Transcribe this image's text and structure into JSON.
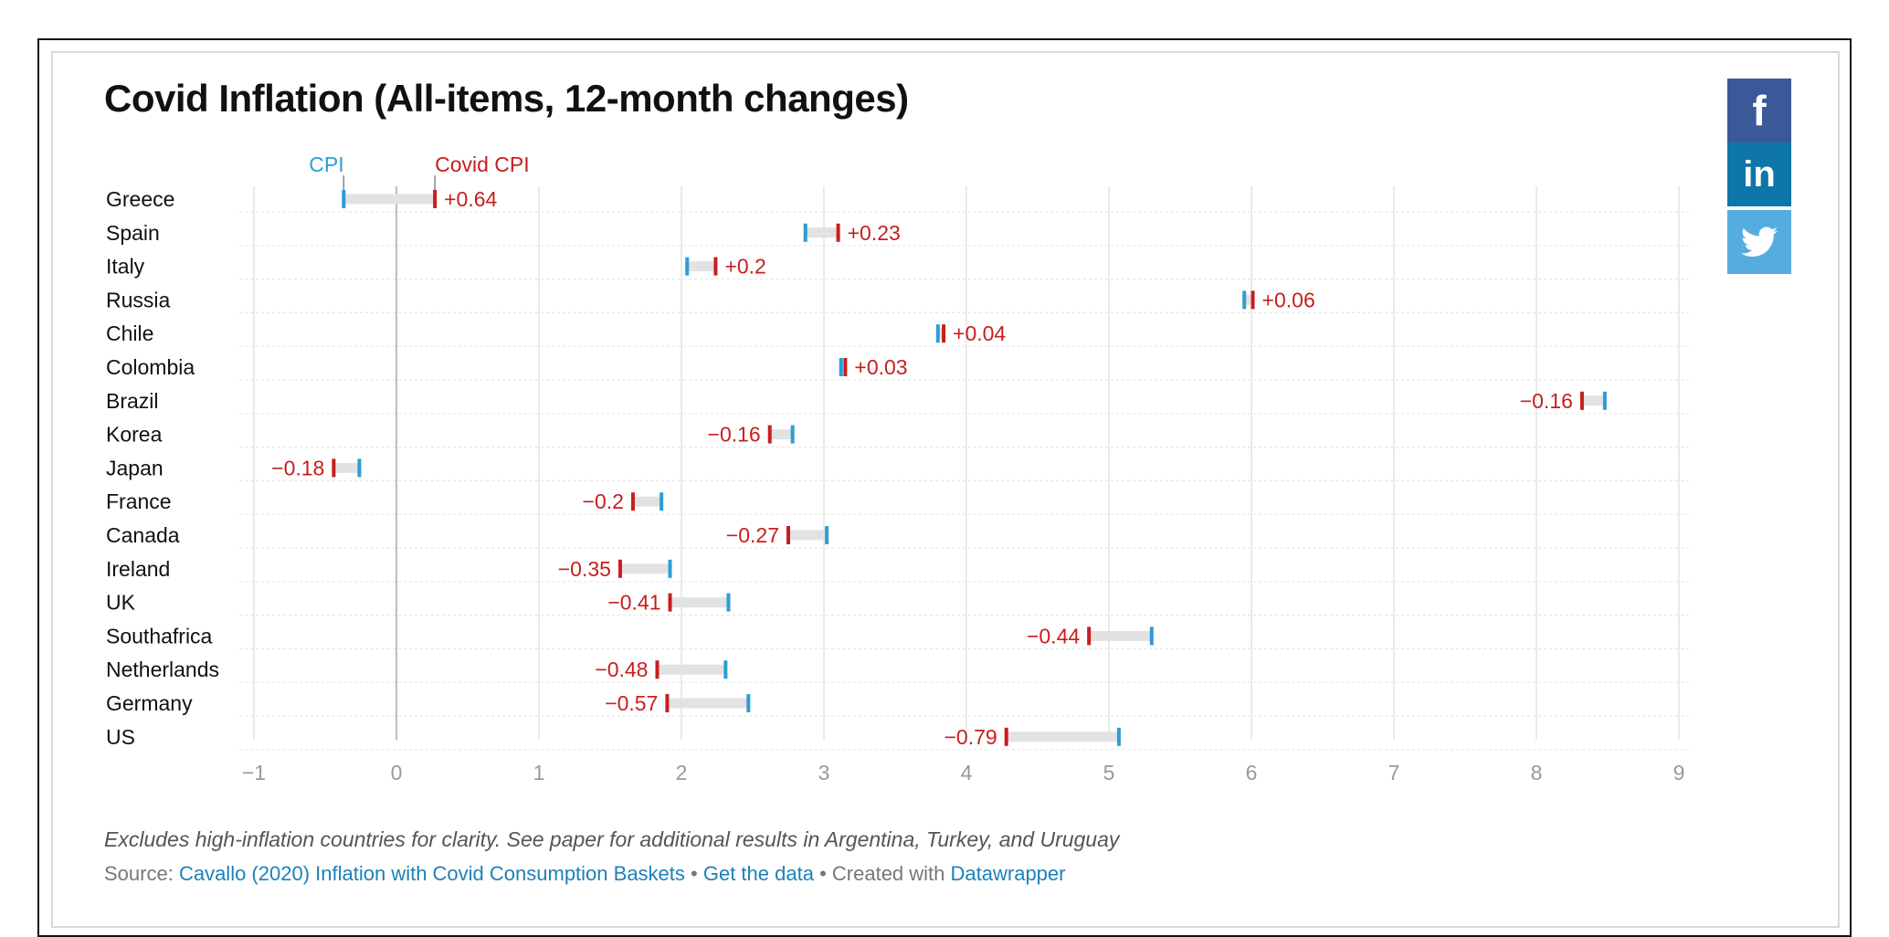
{
  "chart_data": {
    "type": "dumbbell",
    "title": "Covid Inflation (All-items, 12-month changes)",
    "legend": {
      "cpi_label": "CPI",
      "covid_label": "Covid CPI",
      "cpi_color": "#2c9ed3",
      "covid_color": "#c71e1d"
    },
    "xlim": [
      -1,
      9
    ],
    "xticks": [
      "−1",
      "0",
      "1",
      "2",
      "3",
      "4",
      "5",
      "6",
      "7",
      "8",
      "9"
    ],
    "rows": [
      {
        "country": "Greece",
        "cpi": -0.37,
        "covid": 0.27,
        "label": "+0.64"
      },
      {
        "country": "Spain",
        "cpi": 2.87,
        "covid": 3.1,
        "label": "+0.23"
      },
      {
        "country": "Italy",
        "cpi": 2.04,
        "covid": 2.24,
        "label": "+0.2"
      },
      {
        "country": "Russia",
        "cpi": 5.95,
        "covid": 6.01,
        "label": "+0.06"
      },
      {
        "country": "Chile",
        "cpi": 3.8,
        "covid": 3.84,
        "label": "+0.04"
      },
      {
        "country": "Colombia",
        "cpi": 3.12,
        "covid": 3.15,
        "label": "+0.03"
      },
      {
        "country": "Brazil",
        "cpi": 8.48,
        "covid": 8.32,
        "label": "−0.16"
      },
      {
        "country": "Korea",
        "cpi": 2.78,
        "covid": 2.62,
        "label": "−0.16"
      },
      {
        "country": "Japan",
        "cpi": -0.26,
        "covid": -0.44,
        "label": "−0.18"
      },
      {
        "country": "France",
        "cpi": 1.86,
        "covid": 1.66,
        "label": "−0.2"
      },
      {
        "country": "Canada",
        "cpi": 3.02,
        "covid": 2.75,
        "label": "−0.27"
      },
      {
        "country": "Ireland",
        "cpi": 1.92,
        "covid": 1.57,
        "label": "−0.35"
      },
      {
        "country": "UK",
        "cpi": 2.33,
        "covid": 1.92,
        "label": "−0.41"
      },
      {
        "country": "Southafrica",
        "cpi": 5.3,
        "covid": 4.86,
        "label": "−0.44"
      },
      {
        "country": "Netherlands",
        "cpi": 2.31,
        "covid": 1.83,
        "label": "−0.48"
      },
      {
        "country": "Germany",
        "cpi": 2.47,
        "covid": 1.9,
        "label": "−0.57"
      },
      {
        "country": "US",
        "cpi": 5.07,
        "covid": 4.28,
        "label": "−0.79"
      }
    ],
    "notes": "Excludes high-inflation countries for clarity. See paper for additional results in Argentina, Turkey, and Uruguay",
    "grid": true
  },
  "footer": {
    "source_prefix": "Source:",
    "source_link": "Cavallo (2020) Inflation with Covid Consumption Baskets",
    "sep1": "•",
    "data_link": "Get the data",
    "sep2": "• Created with",
    "dw_link": "Datawrapper"
  },
  "social": {
    "facebook_glyph": "f",
    "linkedin_glyph": "in",
    "icons": [
      "facebook-icon",
      "linkedin-icon",
      "twitter-icon"
    ]
  }
}
